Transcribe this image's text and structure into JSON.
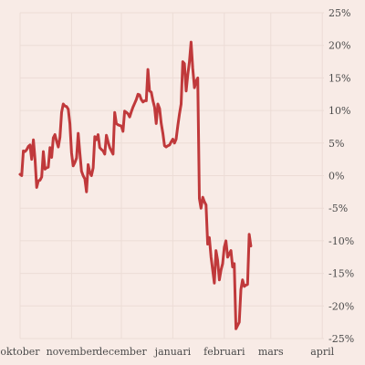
{
  "chart_data": {
    "type": "line",
    "title": "",
    "xlabel": "",
    "ylabel": "",
    "grid": true,
    "line_color": "#c0393b",
    "grid_color": "#ecdcd6",
    "background": "#f8ebe6",
    "xlim": [
      0,
      183
    ],
    "ylim": [
      -25,
      25
    ],
    "y_ticks": [
      {
        "value": 25,
        "label": "25%"
      },
      {
        "value": 20,
        "label": "20%"
      },
      {
        "value": 15,
        "label": "15%"
      },
      {
        "value": 10,
        "label": "10%"
      },
      {
        "value": 5,
        "label": "5%"
      },
      {
        "value": 0,
        "label": "0%"
      },
      {
        "value": -5,
        "label": "-5%"
      },
      {
        "value": -10,
        "label": "-10%"
      },
      {
        "value": -15,
        "label": "-15%"
      },
      {
        "value": -20,
        "label": "-20%"
      },
      {
        "value": -25,
        "label": "-25%"
      }
    ],
    "x_ticks": [
      {
        "value": 0,
        "label": "oktober"
      },
      {
        "value": 31,
        "label": "november"
      },
      {
        "value": 61,
        "label": "december"
      },
      {
        "value": 92,
        "label": "januari"
      },
      {
        "value": 123,
        "label": "februari"
      },
      {
        "value": 151,
        "label": "mars"
      },
      {
        "value": 182,
        "label": "april"
      }
    ],
    "series": [
      {
        "values": [
          [
            0,
            0.2
          ],
          [
            1,
            0.0
          ],
          [
            2,
            3.8
          ],
          [
            3,
            3.7
          ],
          [
            4,
            4.0
          ],
          [
            5,
            4.5
          ],
          [
            6,
            4.7
          ],
          [
            7,
            2.5
          ],
          [
            8,
            5.5
          ],
          [
            9,
            2.5
          ],
          [
            10,
            -1.8
          ],
          [
            11,
            -0.8
          ],
          [
            12,
            -0.7
          ],
          [
            13,
            -0.2
          ],
          [
            14,
            3.7
          ],
          [
            15,
            1.0
          ],
          [
            16,
            1.2
          ],
          [
            17,
            1.3
          ],
          [
            18,
            4.3
          ],
          [
            19,
            2.8
          ],
          [
            20,
            5.8
          ],
          [
            21,
            6.3
          ],
          [
            22,
            5.3
          ],
          [
            23,
            4.4
          ],
          [
            24,
            5.9
          ],
          [
            25,
            9.7
          ],
          [
            26,
            11.0
          ],
          [
            27,
            10.7
          ],
          [
            28,
            10.6
          ],
          [
            29,
            10.2
          ],
          [
            30,
            8.0
          ],
          [
            31,
            3.5
          ],
          [
            32,
            1.5
          ],
          [
            33,
            2.0
          ],
          [
            34,
            2.7
          ],
          [
            35,
            6.5
          ],
          [
            36,
            3.5
          ],
          [
            37,
            0.7
          ],
          [
            38,
            0.0
          ],
          [
            39,
            -0.5
          ],
          [
            40,
            -2.5
          ],
          [
            41,
            1.7
          ],
          [
            42,
            0.5
          ],
          [
            43,
            0.0
          ],
          [
            44,
            1.2
          ],
          [
            45,
            6.0
          ],
          [
            46,
            5.5
          ],
          [
            47,
            6.3
          ],
          [
            48,
            4.3
          ],
          [
            49,
            4.0
          ],
          [
            50,
            3.8
          ],
          [
            51,
            3.3
          ],
          [
            52,
            6.2
          ],
          [
            53,
            5.2
          ],
          [
            54,
            4.3
          ],
          [
            55,
            3.8
          ],
          [
            56,
            3.3
          ],
          [
            57,
            9.7
          ],
          [
            58,
            8.0
          ],
          [
            59,
            7.8
          ],
          [
            60,
            7.7
          ],
          [
            61,
            7.6
          ],
          [
            62,
            6.8
          ],
          [
            63,
            9.9
          ],
          [
            64,
            9.7
          ],
          [
            65,
            9.5
          ],
          [
            66,
            9.0
          ],
          [
            67,
            9.8
          ],
          [
            68,
            10.5
          ],
          [
            69,
            11.1
          ],
          [
            70,
            11.7
          ],
          [
            71,
            12.5
          ],
          [
            72,
            12.4
          ],
          [
            73,
            11.7
          ],
          [
            74,
            11.3
          ],
          [
            75,
            11.5
          ],
          [
            76,
            11.5
          ],
          [
            77,
            16.3
          ],
          [
            78,
            13.0
          ],
          [
            79,
            12.8
          ],
          [
            80,
            11.5
          ],
          [
            81,
            10.5
          ],
          [
            82,
            8.0
          ],
          [
            83,
            11.0
          ],
          [
            84,
            10.3
          ],
          [
            85,
            8.0
          ],
          [
            86,
            6.5
          ],
          [
            87,
            4.6
          ],
          [
            88,
            4.4
          ],
          [
            89,
            4.6
          ],
          [
            90,
            4.7
          ],
          [
            91,
            5.2
          ],
          [
            92,
            5.6
          ],
          [
            93,
            5.0
          ],
          [
            94,
            5.6
          ],
          [
            95,
            7.7
          ],
          [
            96,
            9.5
          ],
          [
            97,
            11.0
          ],
          [
            98,
            17.5
          ],
          [
            99,
            17.2
          ],
          [
            100,
            13.0
          ],
          [
            101,
            15.5
          ],
          [
            102,
            17.5
          ],
          [
            103,
            20.5
          ],
          [
            104,
            16.5
          ],
          [
            105,
            13.5
          ],
          [
            106,
            14.5
          ],
          [
            107,
            15.0
          ],
          [
            108,
            -3.5
          ],
          [
            109,
            -5.0
          ],
          [
            110,
            -3.3
          ],
          [
            111,
            -4.0
          ],
          [
            112,
            -4.5
          ],
          [
            113,
            -10.5
          ],
          [
            114,
            -9.5
          ],
          [
            115,
            -12.5
          ],
          [
            116,
            -14.5
          ],
          [
            117,
            -16.5
          ],
          [
            118,
            -11.5
          ],
          [
            119,
            -13.0
          ],
          [
            120,
            -16.0
          ],
          [
            121,
            -14.5
          ],
          [
            122,
            -13.5
          ],
          [
            123,
            -11.0
          ],
          [
            124,
            -10.0
          ],
          [
            125,
            -12.5
          ],
          [
            126,
            -12.0
          ],
          [
            127,
            -11.5
          ],
          [
            128,
            -14.0
          ],
          [
            129,
            -13.5
          ],
          [
            130,
            -23.5
          ],
          [
            131,
            -23.0
          ],
          [
            132,
            -22.5
          ],
          [
            133,
            -17.5
          ],
          [
            134,
            -16.0
          ],
          [
            135,
            -17.0
          ],
          [
            136,
            -16.8
          ],
          [
            137,
            -16.7
          ],
          [
            138,
            -9.0
          ],
          [
            139,
            -10.8
          ]
        ]
      }
    ]
  }
}
